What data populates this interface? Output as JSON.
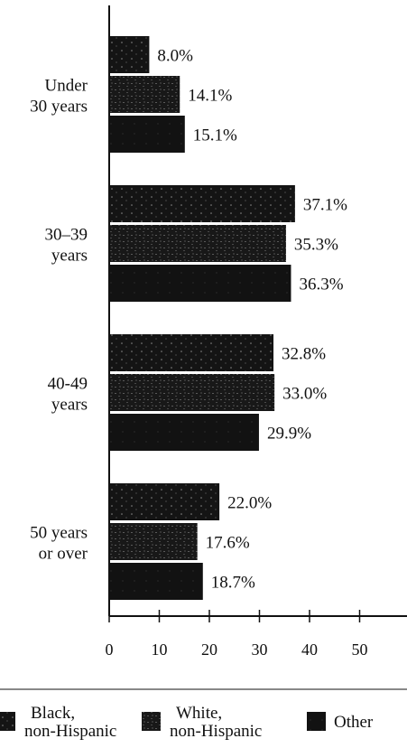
{
  "chart_data": {
    "type": "bar",
    "orientation": "horizontal",
    "categories": [
      "Under 30 years",
      "30–39 years",
      "40-49 years",
      "50 years or over"
    ],
    "category_lines": [
      [
        "Under",
        "30 years"
      ],
      [
        "30–39",
        "years"
      ],
      [
        "40-49",
        "years"
      ],
      [
        "50 years",
        "or over"
      ]
    ],
    "series": [
      {
        "name": "Black, non-Hispanic",
        "name_lines": [
          "Black,",
          "non-Hispanic"
        ],
        "values": [
          8.0,
          37.1,
          32.8,
          22.0
        ],
        "labels": [
          "8.0%",
          "37.1%",
          "32.8%",
          "22.0%"
        ],
        "color": "#141414",
        "texture": "speckle"
      },
      {
        "name": "White, non-Hispanic",
        "name_lines": [
          "White,",
          "non-Hispanic"
        ],
        "values": [
          14.1,
          35.3,
          33.0,
          17.6
        ],
        "labels": [
          "14.1%",
          "35.3%",
          "33.0%",
          "17.6%"
        ],
        "color": "#141414",
        "texture": "mottled"
      },
      {
        "name": "Other",
        "name_lines": [
          "Other"
        ],
        "values": [
          15.1,
          36.3,
          29.9,
          18.7
        ],
        "labels": [
          "15.1%",
          "36.3%",
          "29.9%",
          "18.7%"
        ],
        "color": "#141414",
        "texture": "solid"
      }
    ],
    "x_ticks": [
      0,
      10,
      20,
      30,
      40,
      50
    ],
    "x_tick_labels": [
      "0",
      "10",
      "20",
      "30",
      "40",
      "50"
    ],
    "xlim": [
      0,
      50
    ],
    "grid": false,
    "legend_position": "bottom",
    "title": "",
    "xlabel": "",
    "ylabel": ""
  }
}
